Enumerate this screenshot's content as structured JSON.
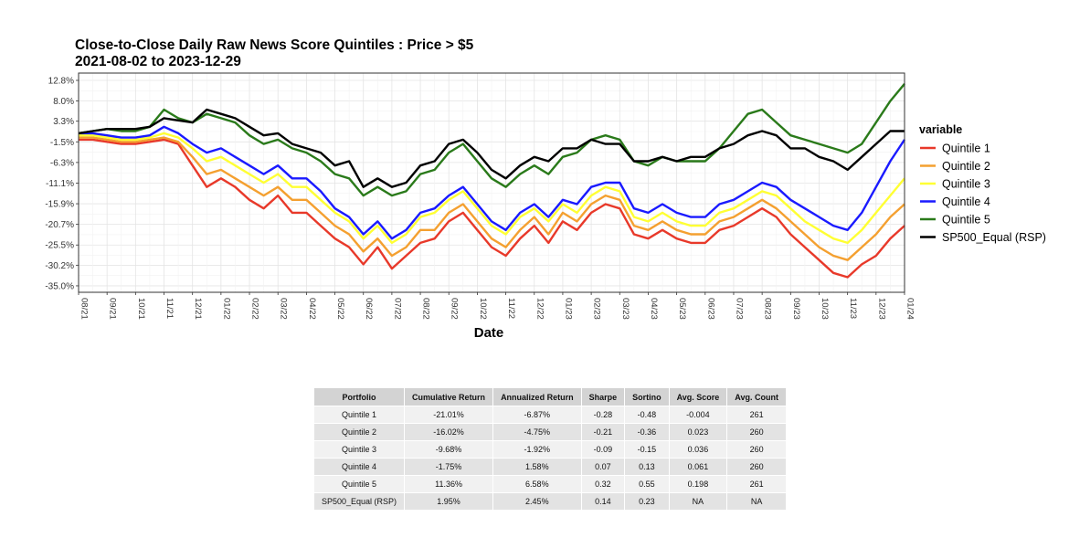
{
  "chart_data": {
    "type": "line",
    "title": "Close-to-Close Daily Raw News Score Quintiles : Price > $5",
    "subtitle": "2021-08-02 to 2023-12-29",
    "xlabel": "Date",
    "ylabel": "",
    "yticks": [
      "12.8%",
      "8.0%",
      "3.3%",
      "-1.5%",
      "-6.3%",
      "-11.1%",
      "-15.9%",
      "-20.7%",
      "-25.5%",
      "-30.2%",
      "-35.0%"
    ],
    "ytick_values": [
      12.8,
      8.0,
      3.3,
      -1.5,
      -6.3,
      -11.1,
      -15.9,
      -20.7,
      -25.5,
      -30.2,
      -35.0
    ],
    "ylim": [
      -36.5,
      14.5
    ],
    "xlim": [
      0,
      29
    ],
    "xticks": [
      "08/21",
      "09/21",
      "10/21",
      "11/21",
      "12/21",
      "01/22",
      "02/22",
      "03/22",
      "04/22",
      "05/22",
      "06/22",
      "07/22",
      "08/22",
      "09/22",
      "10/22",
      "11/22",
      "12/22",
      "01/23",
      "02/23",
      "03/23",
      "04/23",
      "05/23",
      "06/23",
      "07/23",
      "08/23",
      "09/23",
      "10/23",
      "11/23",
      "12/23",
      "01/24"
    ],
    "legend_title": "variable",
    "legend_position": "right",
    "grid": true,
    "x": [
      0,
      0.5,
      1,
      1.5,
      2,
      2.5,
      3,
      3.5,
      4,
      4.5,
      5,
      5.5,
      6,
      6.5,
      7,
      7.5,
      8,
      8.5,
      9,
      9.5,
      10,
      10.5,
      11,
      11.5,
      12,
      12.5,
      13,
      13.5,
      14,
      14.5,
      15,
      15.5,
      16,
      16.5,
      17,
      17.5,
      18,
      18.5,
      19,
      19.5,
      20,
      20.5,
      21,
      21.5,
      22,
      22.5,
      23,
      23.5,
      24,
      24.5,
      25,
      25.5,
      26,
      26.5,
      27,
      27.5,
      28,
      28.5,
      29
    ],
    "series": [
      {
        "name": "Quintile 1",
        "color": "#e8392a",
        "values": [
          -1,
          -1,
          -1.5,
          -2,
          -2,
          -1.5,
          -1,
          -2,
          -7,
          -12,
          -10,
          -12,
          -15,
          -17,
          -14,
          -18,
          -18,
          -21,
          -24,
          -26,
          -30,
          -26,
          -31,
          -28,
          -25,
          -24,
          -20,
          -18,
          -22,
          -26,
          -28,
          -24,
          -21,
          -25,
          -20,
          -22,
          -18,
          -16,
          -17,
          -23,
          -24,
          -22,
          -24,
          -25,
          -25,
          -22,
          -21,
          -19,
          -17,
          -19,
          -23,
          -26,
          -29,
          -32,
          -33,
          -30,
          -28,
          -24,
          -21
        ]
      },
      {
        "name": "Quintile 2",
        "color": "#f4a030",
        "values": [
          -0.5,
          -0.5,
          -1,
          -1.5,
          -1.5,
          -1,
          -0.5,
          -1.5,
          -5,
          -9,
          -8,
          -10,
          -12,
          -14,
          -12,
          -15,
          -15,
          -18,
          -21,
          -23,
          -27,
          -24,
          -28,
          -26,
          -22,
          -22,
          -18,
          -16,
          -20,
          -24,
          -26,
          -22,
          -19,
          -23,
          -18,
          -20,
          -16,
          -14,
          -15,
          -21,
          -22,
          -20,
          -22,
          -23,
          -23,
          -20,
          -19,
          -17,
          -15,
          -17,
          -20,
          -23,
          -26,
          -28,
          -29,
          -26,
          -23,
          -19,
          -16
        ]
      },
      {
        "name": "Quintile 3",
        "color": "#ffff33",
        "values": [
          0,
          0,
          -0.5,
          -1,
          -1,
          -0.5,
          0.5,
          -0.5,
          -3,
          -6,
          -5,
          -7,
          -9,
          -11,
          -9,
          -12,
          -12,
          -15,
          -18,
          -20,
          -24,
          -21,
          -25,
          -23,
          -19,
          -18,
          -15,
          -13,
          -17,
          -21,
          -23,
          -19,
          -17,
          -20,
          -16,
          -18,
          -14,
          -12,
          -13,
          -19,
          -20,
          -18,
          -20,
          -21,
          -21,
          -18,
          -17,
          -15,
          -13,
          -14,
          -17,
          -20,
          -22,
          -24,
          -25,
          -22,
          -18,
          -14,
          -10
        ]
      },
      {
        "name": "Quintile 4",
        "color": "#1a1aff",
        "values": [
          0.5,
          0.5,
          0,
          -0.5,
          -0.5,
          0,
          2,
          0.5,
          -2,
          -4,
          -3,
          -5,
          -7,
          -9,
          -7,
          -10,
          -10,
          -13,
          -17,
          -19,
          -23,
          -20,
          -24,
          -22,
          -18,
          -17,
          -14,
          -12,
          -16,
          -20,
          -22,
          -18,
          -16,
          -19,
          -15,
          -16,
          -12,
          -11,
          -11,
          -17,
          -18,
          -16,
          -18,
          -19,
          -19,
          -16,
          -15,
          -13,
          -11,
          -12,
          -15,
          -17,
          -19,
          -21,
          -22,
          -18,
          -12,
          -6,
          -1
        ]
      },
      {
        "name": "Quintile 5",
        "color": "#2a7a1a",
        "values": [
          0.5,
          1,
          1.5,
          1,
          1,
          2,
          6,
          4,
          3,
          5,
          4,
          3,
          0,
          -2,
          -1,
          -3,
          -4,
          -6,
          -9,
          -10,
          -14,
          -12,
          -14,
          -13,
          -9,
          -8,
          -4,
          -2,
          -6,
          -10,
          -12,
          -9,
          -7,
          -9,
          -5,
          -4,
          -1,
          0,
          -1,
          -6,
          -7,
          -5,
          -6,
          -6,
          -6,
          -3,
          1,
          5,
          6,
          3,
          0,
          -1,
          -2,
          -3,
          -4,
          -2,
          3,
          8,
          12
        ]
      },
      {
        "name": "SP500_Equal (RSP)",
        "color": "#000000",
        "values": [
          0.5,
          1,
          1.5,
          1.5,
          1.5,
          2,
          4,
          3.5,
          3,
          6,
          5,
          4,
          2,
          0,
          0.5,
          -2,
          -3,
          -4,
          -7,
          -6,
          -12,
          -10,
          -12,
          -11,
          -7,
          -6,
          -2,
          -1,
          -4,
          -8,
          -10,
          -7,
          -5,
          -6,
          -3,
          -3,
          -1,
          -2,
          -2,
          -6,
          -6,
          -5,
          -6,
          -5,
          -5,
          -3,
          -2,
          0,
          1,
          0,
          -3,
          -3,
          -5,
          -6,
          -8,
          -5,
          -2,
          1,
          1
        ]
      }
    ]
  },
  "stats_table": {
    "headers": [
      "Portfolio",
      "Cumulative Return",
      "Annualized Return",
      "Sharpe",
      "Sortino",
      "Avg. Score",
      "Avg. Count"
    ],
    "rows": [
      [
        "Quintile 1",
        "-21.01%",
        "-6.87%",
        "-0.28",
        "-0.48",
        "-0.004",
        "261"
      ],
      [
        "Quintile 2",
        "-16.02%",
        "-4.75%",
        "-0.21",
        "-0.36",
        "0.023",
        "260"
      ],
      [
        "Quintile 3",
        "-9.68%",
        "-1.92%",
        "-0.09",
        "-0.15",
        "0.036",
        "260"
      ],
      [
        "Quintile 4",
        "-1.75%",
        "1.58%",
        "0.07",
        "0.13",
        "0.061",
        "260"
      ],
      [
        "Quintile 5",
        "11.36%",
        "6.58%",
        "0.32",
        "0.55",
        "0.198",
        "261"
      ],
      [
        "SP500_Equal (RSP)",
        "1.95%",
        "2.45%",
        "0.14",
        "0.23",
        "NA",
        "NA"
      ]
    ]
  }
}
